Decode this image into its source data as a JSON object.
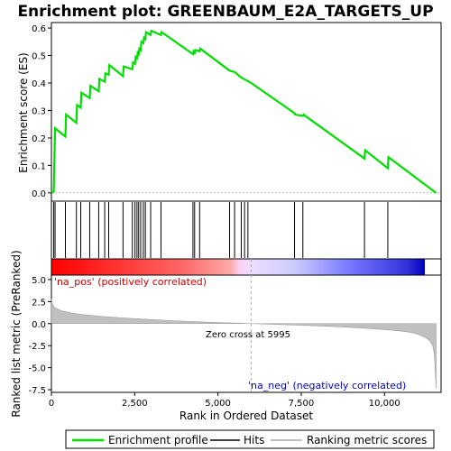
{
  "chart_data": {
    "type": "line",
    "title": "Enrichment plot: GREENBAUM_E2A_TARGETS_UP",
    "xlabel": "Rank in Ordered Dataset",
    "xlim": [
      0,
      11700
    ],
    "xticks": [
      0,
      2500,
      5000,
      7500,
      10000
    ],
    "xtick_labels": [
      "0",
      "2,500",
      "5,000",
      "7,500",
      "10,000"
    ],
    "es_panel": {
      "ylabel": "Enrichment score (ES)",
      "ylim": [
        -0.03,
        0.62
      ],
      "yticks": [
        0.0,
        0.1,
        0.2,
        0.3,
        0.4,
        0.5,
        0.6
      ],
      "ytick_labels": [
        "0.0",
        "0.1",
        "0.2",
        "0.3",
        "0.4",
        "0.5",
        "0.6"
      ],
      "series_color": "#00dd00",
      "x": [
        0,
        70,
        90,
        110,
        420,
        440,
        750,
        770,
        880,
        900,
        1150,
        1170,
        1420,
        1440,
        1600,
        1620,
        1720,
        1740,
        2150,
        2170,
        2430,
        2450,
        2510,
        2530,
        2570,
        2590,
        2620,
        2640,
        2680,
        2700,
        2760,
        2780,
        2820,
        2840,
        2980,
        3000,
        3290,
        3310,
        4250,
        4270,
        4300,
        4320,
        4450,
        4470,
        5350,
        5500,
        5700,
        5850,
        6000,
        7300,
        7320,
        7550,
        7570,
        9400,
        9420,
        10100,
        10120,
        11550
      ],
      "y": [
        0.0,
        0.005,
        0.12,
        0.235,
        0.205,
        0.285,
        0.255,
        0.32,
        0.31,
        0.365,
        0.345,
        0.39,
        0.37,
        0.415,
        0.405,
        0.435,
        0.43,
        0.465,
        0.425,
        0.46,
        0.45,
        0.475,
        0.47,
        0.495,
        0.49,
        0.51,
        0.505,
        0.525,
        0.52,
        0.55,
        0.545,
        0.565,
        0.56,
        0.585,
        0.575,
        0.59,
        0.575,
        0.585,
        0.505,
        0.515,
        0.51,
        0.52,
        0.515,
        0.525,
        0.445,
        0.44,
        0.42,
        0.41,
        0.4,
        0.29,
        0.285,
        0.28,
        0.285,
        0.125,
        0.155,
        0.09,
        0.13,
        0.0
      ]
    },
    "hits": [
      70,
      110,
      420,
      750,
      880,
      1150,
      1420,
      1600,
      1720,
      2150,
      2430,
      2510,
      2570,
      2620,
      2680,
      2760,
      2820,
      2980,
      3290,
      4250,
      4300,
      4450,
      5350,
      5500,
      5700,
      5800,
      5900,
      7300,
      7550,
      9400,
      10100
    ],
    "ranked_panel": {
      "ylabel": "Ranked list metric (PreRanked)",
      "ylim": [
        -7.8,
        5.5
      ],
      "yticks": [
        -7.5,
        -5.0,
        -2.5,
        0.0,
        2.5,
        5.0
      ],
      "ytick_labels": [
        "-7.5",
        "-5.0",
        "-2.5",
        "0.0",
        "2.5",
        "5.0"
      ],
      "profile": {
        "x": [
          0,
          30,
          100,
          300,
          600,
          1000,
          1500,
          2000,
          2500,
          3000,
          3500,
          4000,
          4500,
          5000,
          5500,
          5995,
          6500,
          7000,
          7500,
          8000,
          8500,
          9000,
          9500,
          10000,
          10500,
          10800,
          11000,
          11200,
          11350,
          11450,
          11500,
          11550
        ],
        "y": [
          2.8,
          2.2,
          1.8,
          1.45,
          1.2,
          1.0,
          0.82,
          0.68,
          0.56,
          0.45,
          0.36,
          0.27,
          0.19,
          0.12,
          0.06,
          0.0,
          -0.06,
          -0.12,
          -0.19,
          -0.26,
          -0.34,
          -0.43,
          -0.54,
          -0.67,
          -0.85,
          -1.0,
          -1.2,
          -1.5,
          -1.9,
          -2.5,
          -3.5,
          -7.4
        ]
      },
      "pos_label": "'na_pos' (positively correlated)",
      "neg_label": "'na_neg' (negatively correlated)",
      "pos_color": "#cc0000",
      "neg_color": "#0000cc",
      "zero_cross_label": "Zero cross at 5995",
      "zero_cross": 5995
    },
    "legend": {
      "placement": "bottom",
      "entries": [
        {
          "label": "Enrichment profile",
          "color": "#00dd00"
        },
        {
          "label": "Hits",
          "color": "#000000"
        },
        {
          "label": "Ranking metric scores",
          "color": "#aaaaaa"
        }
      ]
    },
    "heatmap_colors": [
      "#ff0000",
      "#ff4444",
      "#ff8888",
      "#ffbbdd",
      "#ddddff",
      "#9999ff",
      "#4444ff",
      "#0000cc"
    ]
  }
}
